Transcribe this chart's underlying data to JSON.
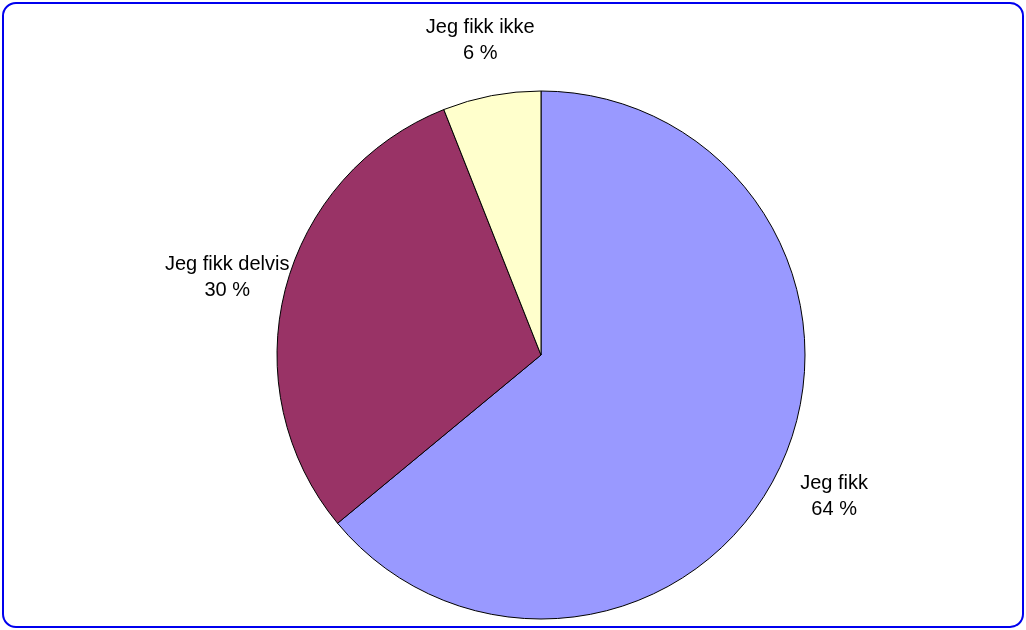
{
  "chart_data": {
    "type": "pie",
    "categories": [
      "Jeg fikk",
      "Jeg fikk delvis",
      "Jeg fikk ikke"
    ],
    "values": [
      64,
      30,
      6
    ],
    "colors": [
      "#9999ff",
      "#993366",
      "#ffffcc"
    ],
    "value_labels": [
      "64 %",
      "30 %",
      "6 %"
    ]
  }
}
